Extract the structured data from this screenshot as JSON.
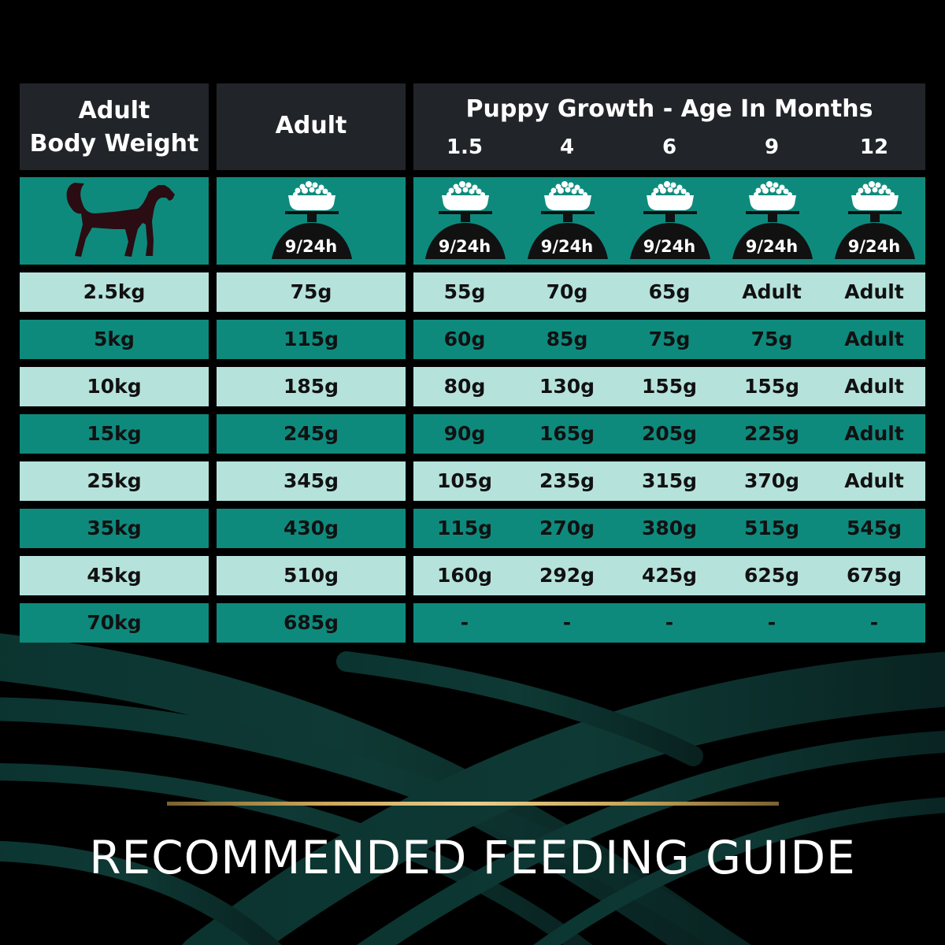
{
  "header": {
    "weight_col": "Adult\nBody Weight",
    "adult_col": "Adult",
    "puppy_col": "Puppy Growth - Age In Months",
    "ages": [
      "1.5",
      "4",
      "6",
      "9",
      "12"
    ]
  },
  "icons": {
    "dog": "dog-silhouette-icon",
    "bowl": "food-bowl-icon",
    "bowl_label": "9/24h"
  },
  "rows": [
    {
      "weight": "2.5kg",
      "adult": "75g",
      "puppy": [
        "55g",
        "70g",
        "65g",
        "Adult",
        "Adult"
      ]
    },
    {
      "weight": "5kg",
      "adult": "115g",
      "puppy": [
        "60g",
        "85g",
        "75g",
        "75g",
        "Adult"
      ]
    },
    {
      "weight": "10kg",
      "adult": "185g",
      "puppy": [
        "80g",
        "130g",
        "155g",
        "155g",
        "Adult"
      ]
    },
    {
      "weight": "15kg",
      "adult": "245g",
      "puppy": [
        "90g",
        "165g",
        "205g",
        "225g",
        "Adult"
      ]
    },
    {
      "weight": "25kg",
      "adult": "345g",
      "puppy": [
        "105g",
        "235g",
        "315g",
        "370g",
        "Adult"
      ]
    },
    {
      "weight": "35kg",
      "adult": "430g",
      "puppy": [
        "115g",
        "270g",
        "380g",
        "515g",
        "545g"
      ]
    },
    {
      "weight": "45kg",
      "adult": "510g",
      "puppy": [
        "160g",
        "292g",
        "425g",
        "625g",
        "675g"
      ]
    },
    {
      "weight": "70kg",
      "adult": "685g",
      "puppy": [
        "-",
        "-",
        "-",
        "-",
        "-"
      ]
    }
  ],
  "footer": {
    "title": "RECOMMENDED FEEDING GUIDE"
  },
  "colors": {
    "header": "#212529",
    "teal": "#0e8a7d",
    "light": "#b6e2dc",
    "gold": "#c9a65c"
  }
}
